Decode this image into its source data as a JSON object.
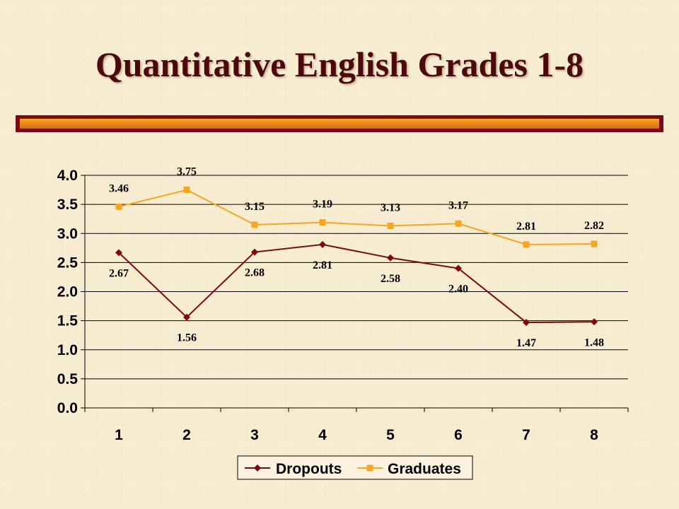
{
  "slide": {
    "title": "Quantitative English Grades 1-8"
  },
  "colors": {
    "title": "#4a0a10",
    "bar_border": "#7a0a14",
    "bar_fill": "#e9851a"
  },
  "chart_data": {
    "type": "line",
    "title": "",
    "xlabel": "",
    "ylabel": "",
    "categories": [
      "1",
      "2",
      "3",
      "4",
      "5",
      "6",
      "7",
      "8"
    ],
    "ylim": [
      0,
      4
    ],
    "yticks": [
      "0.0",
      "0.5",
      "1.0",
      "1.5",
      "2.0",
      "2.5",
      "3.0",
      "3.5",
      "4.0"
    ],
    "grid": true,
    "legend_position": "bottom",
    "series": [
      {
        "name": "Dropouts",
        "color": "#7a0a14",
        "marker": "diamond",
        "values": [
          2.67,
          1.56,
          2.68,
          2.81,
          2.58,
          2.4,
          1.47,
          1.48
        ],
        "labels": [
          "2.67",
          "1.56",
          "2.68",
          "2.81",
          "2.58",
          "2.40",
          "1.47",
          "1.48"
        ]
      },
      {
        "name": "Graduates",
        "color": "#f5a623",
        "marker": "square",
        "values": [
          3.46,
          3.75,
          3.15,
          3.19,
          3.13,
          3.17,
          2.81,
          2.82
        ],
        "labels": [
          "3.46",
          "3.75",
          "3.15",
          "3.19",
          "3.13",
          "3.17",
          "2.81",
          "2.82"
        ]
      }
    ]
  }
}
